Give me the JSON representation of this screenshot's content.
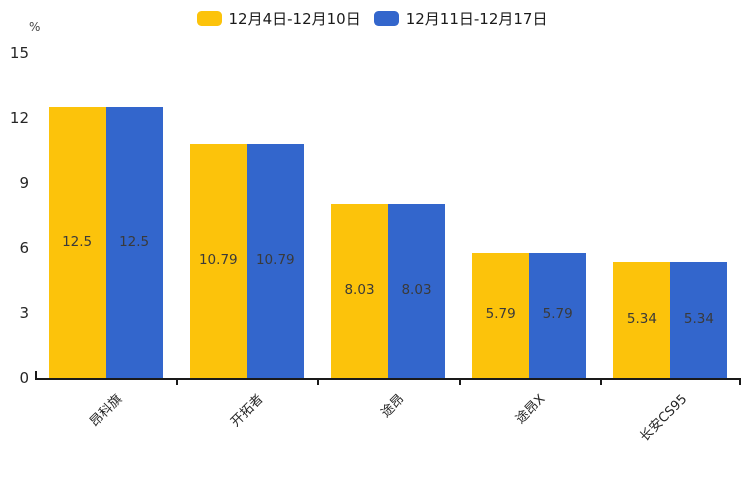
{
  "chart_data": {
    "type": "bar",
    "unit_label": "%",
    "categories": [
      "昂科旗",
      "开拓者",
      "途昂",
      "途昂X",
      "长安CS95"
    ],
    "series": [
      {
        "name": "12月4日-12月10日",
        "color": "#FCC30B",
        "values": [
          12.5,
          10.79,
          8.03,
          5.79,
          5.34
        ]
      },
      {
        "name": "12月11日-12月17日",
        "color": "#3366CC",
        "values": [
          12.5,
          10.79,
          8.03,
          5.79,
          5.34
        ]
      }
    ],
    "value_labels": [
      "12.5",
      "10.79",
      "8.03",
      "5.79",
      "5.34"
    ],
    "yticks": [
      0,
      3,
      6,
      9,
      12,
      15
    ],
    "ylim": [
      0,
      15
    ],
    "grid": false,
    "legend_position": "top",
    "value_label_position": "inside-middle"
  },
  "colors": {
    "axis": "#1a1a1a",
    "value_label": "#3a3a3a",
    "tick_label": "#262626"
  }
}
